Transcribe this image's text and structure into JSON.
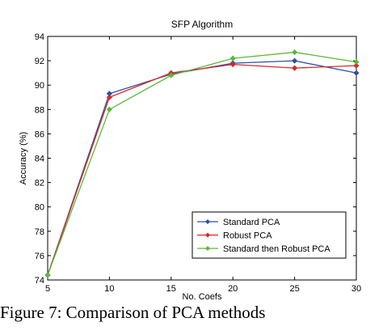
{
  "caption": "Figure 7: Comparison of PCA methods",
  "chart_data": {
    "type": "line",
    "title": "SFP Algorithm",
    "xlabel": "No. Coefs",
    "ylabel": "Accuracy (%)",
    "x": [
      5,
      10,
      15,
      20,
      25,
      30
    ],
    "xlim": [
      5,
      30
    ],
    "ylim": [
      74,
      94
    ],
    "xticks": [
      5,
      10,
      15,
      20,
      25,
      30
    ],
    "yticks": [
      74,
      76,
      78,
      80,
      82,
      84,
      86,
      88,
      90,
      92,
      94
    ],
    "grid": false,
    "legend_position": "bottom-right",
    "series": [
      {
        "name": "Standard PCA",
        "color": "#2b4fa8",
        "values": [
          74.4,
          89.3,
          90.9,
          91.8,
          92.0,
          91.0
        ]
      },
      {
        "name": "Robust PCA",
        "color": "#d42a2a",
        "values": [
          74.4,
          89.0,
          91.0,
          91.7,
          91.4,
          91.6
        ]
      },
      {
        "name": "Standard then Robust PCA",
        "color": "#5cb83a",
        "values": [
          74.4,
          88.0,
          90.8,
          92.2,
          92.7,
          91.9
        ]
      }
    ]
  }
}
